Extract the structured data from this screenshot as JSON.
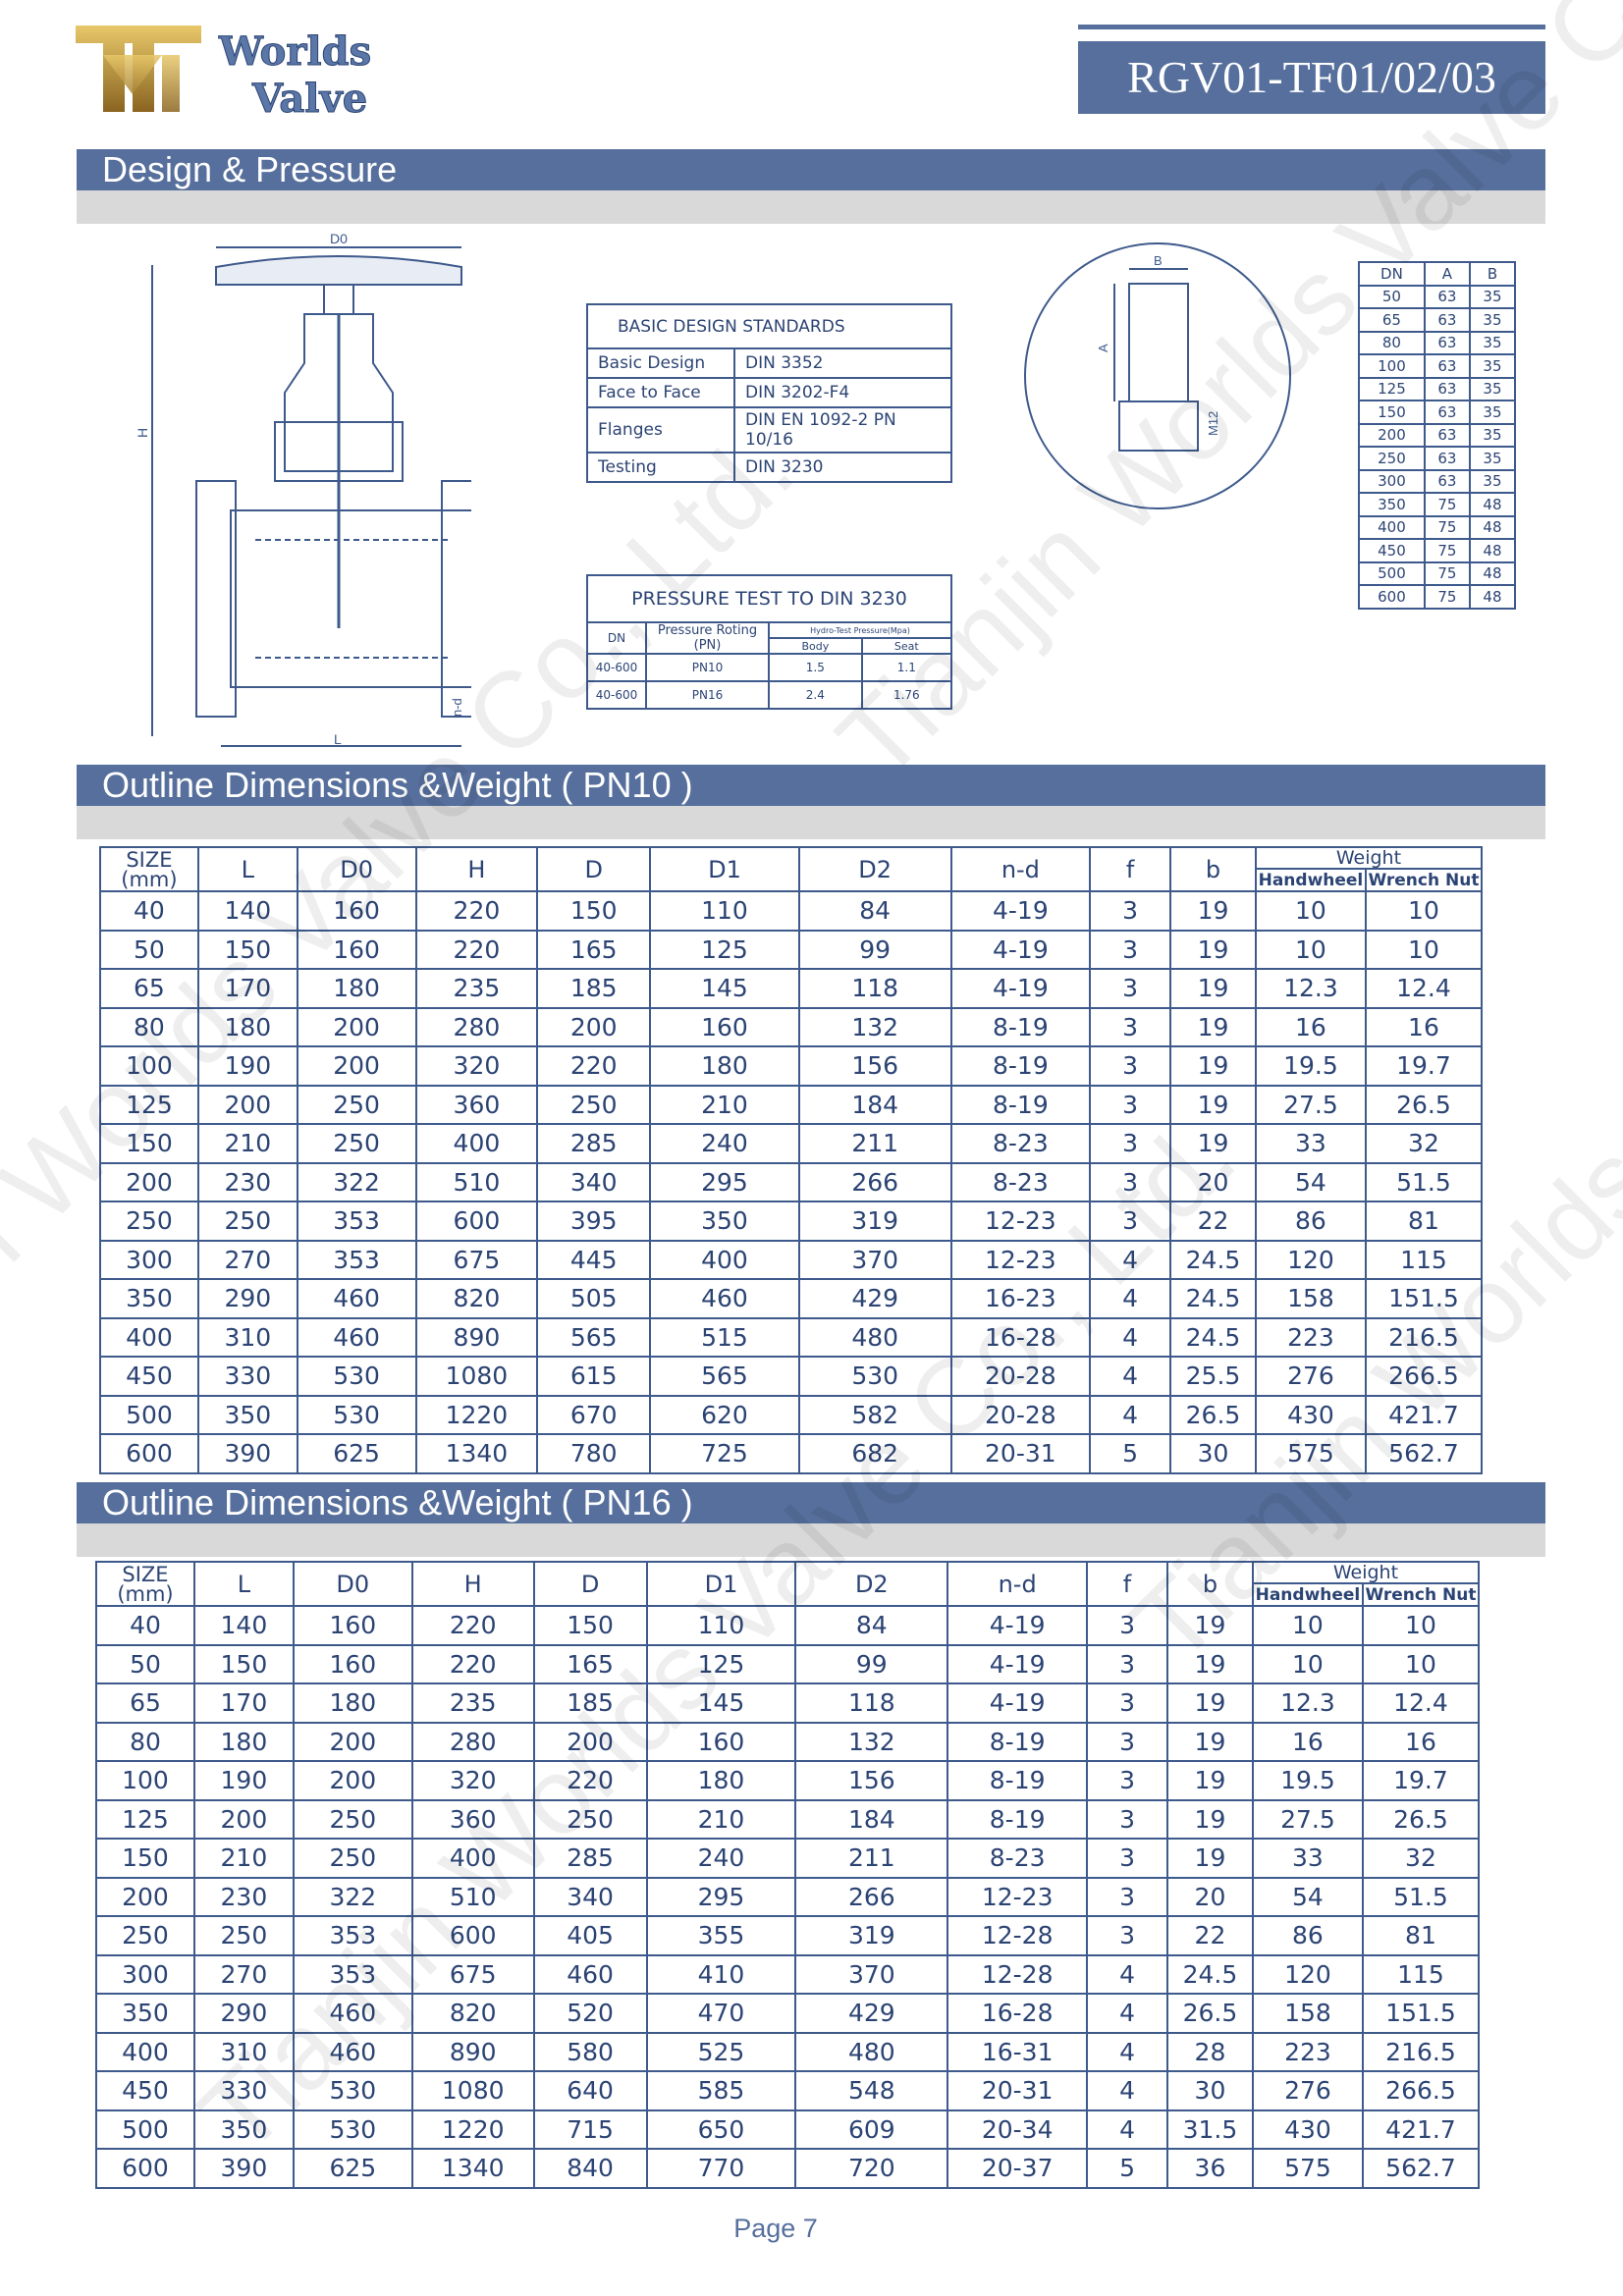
{
  "header": {
    "logo_text": [
      "Worlds",
      "Valve"
    ],
    "model": "RGV01-TF01/02/03"
  },
  "watermark": "Tianjin Worlds Valve Co., Ltd.",
  "sections": {
    "design": "Design & Pressure",
    "pn10": "Outline Dimensions &Weight   ( PN10 )",
    "pn16": "Outline Dimensions &Weight   ( PN16 )"
  },
  "drawing_labels": {
    "d0": "D0",
    "h": "H",
    "l": "L",
    "nd": "n-d",
    "b": "B",
    "a": "A",
    "m": "M12"
  },
  "design_standards": {
    "title": "BASIC DESIGN STANDARDS",
    "rows": [
      [
        "Basic Design",
        "DIN 3352"
      ],
      [
        "Face to Face",
        "DIN 3202-F4"
      ],
      [
        "Flanges",
        "DIN EN 1092-2  PN 10/16"
      ],
      [
        "Testing",
        "DIN 3230"
      ]
    ]
  },
  "pressure_test": {
    "title": "PRESSURE TEST TO DIN 3230",
    "h_dn": "DN",
    "h_rating": "Pressure Roting (PN)",
    "h_hydro": "Hydro-Test Pressure(Mpa)",
    "h_body": "Body",
    "h_seat": "Seat",
    "rows": [
      [
        "40-600",
        "PN10",
        "1.5",
        "1.1"
      ],
      [
        "40-600",
        "PN16",
        "2.4",
        "1.76"
      ]
    ]
  },
  "nut_table": {
    "headers": [
      "DN",
      "A",
      "B"
    ],
    "rows": [
      [
        "50",
        "63",
        "35"
      ],
      [
        "65",
        "63",
        "35"
      ],
      [
        "80",
        "63",
        "35"
      ],
      [
        "100",
        "63",
        "35"
      ],
      [
        "125",
        "63",
        "35"
      ],
      [
        "150",
        "63",
        "35"
      ],
      [
        "200",
        "63",
        "35"
      ],
      [
        "250",
        "63",
        "35"
      ],
      [
        "300",
        "63",
        "35"
      ],
      [
        "350",
        "75",
        "48"
      ],
      [
        "400",
        "75",
        "48"
      ],
      [
        "450",
        "75",
        "48"
      ],
      [
        "500",
        "75",
        "48"
      ],
      [
        "600",
        "75",
        "48"
      ]
    ]
  },
  "dim_headers": {
    "cols": [
      "SIZE (mm)",
      "L",
      "D0",
      "H",
      "D",
      "D1",
      "D2",
      "n-d",
      "f",
      "b"
    ],
    "weight": "Weight",
    "handwheel": "Handwheel",
    "wrench": "Wrench Nut"
  },
  "pn10_rows": [
    [
      "40",
      "140",
      "160",
      "220",
      "150",
      "110",
      "84",
      "4-19",
      "3",
      "19",
      "10",
      "10"
    ],
    [
      "50",
      "150",
      "160",
      "220",
      "165",
      "125",
      "99",
      "4-19",
      "3",
      "19",
      "10",
      "10"
    ],
    [
      "65",
      "170",
      "180",
      "235",
      "185",
      "145",
      "118",
      "4-19",
      "3",
      "19",
      "12.3",
      "12.4"
    ],
    [
      "80",
      "180",
      "200",
      "280",
      "200",
      "160",
      "132",
      "8-19",
      "3",
      "19",
      "16",
      "16"
    ],
    [
      "100",
      "190",
      "200",
      "320",
      "220",
      "180",
      "156",
      "8-19",
      "3",
      "19",
      "19.5",
      "19.7"
    ],
    [
      "125",
      "200",
      "250",
      "360",
      "250",
      "210",
      "184",
      "8-19",
      "3",
      "19",
      "27.5",
      "26.5"
    ],
    [
      "150",
      "210",
      "250",
      "400",
      "285",
      "240",
      "211",
      "8-23",
      "3",
      "19",
      "33",
      "32"
    ],
    [
      "200",
      "230",
      "322",
      "510",
      "340",
      "295",
      "266",
      "8-23",
      "3",
      "20",
      "54",
      "51.5"
    ],
    [
      "250",
      "250",
      "353",
      "600",
      "395",
      "350",
      "319",
      "12-23",
      "3",
      "22",
      "86",
      "81"
    ],
    [
      "300",
      "270",
      "353",
      "675",
      "445",
      "400",
      "370",
      "12-23",
      "4",
      "24.5",
      "120",
      "115"
    ],
    [
      "350",
      "290",
      "460",
      "820",
      "505",
      "460",
      "429",
      "16-23",
      "4",
      "24.5",
      "158",
      "151.5"
    ],
    [
      "400",
      "310",
      "460",
      "890",
      "565",
      "515",
      "480",
      "16-28",
      "4",
      "24.5",
      "223",
      "216.5"
    ],
    [
      "450",
      "330",
      "530",
      "1080",
      "615",
      "565",
      "530",
      "20-28",
      "4",
      "25.5",
      "276",
      "266.5"
    ],
    [
      "500",
      "350",
      "530",
      "1220",
      "670",
      "620",
      "582",
      "20-28",
      "4",
      "26.5",
      "430",
      "421.7"
    ],
    [
      "600",
      "390",
      "625",
      "1340",
      "780",
      "725",
      "682",
      "20-31",
      "5",
      "30",
      "575",
      "562.7"
    ]
  ],
  "pn16_rows": [
    [
      "40",
      "140",
      "160",
      "220",
      "150",
      "110",
      "84",
      "4-19",
      "3",
      "19",
      "10",
      "10"
    ],
    [
      "50",
      "150",
      "160",
      "220",
      "165",
      "125",
      "99",
      "4-19",
      "3",
      "19",
      "10",
      "10"
    ],
    [
      "65",
      "170",
      "180",
      "235",
      "185",
      "145",
      "118",
      "4-19",
      "3",
      "19",
      "12.3",
      "12.4"
    ],
    [
      "80",
      "180",
      "200",
      "280",
      "200",
      "160",
      "132",
      "8-19",
      "3",
      "19",
      "16",
      "16"
    ],
    [
      "100",
      "190",
      "200",
      "320",
      "220",
      "180",
      "156",
      "8-19",
      "3",
      "19",
      "19.5",
      "19.7"
    ],
    [
      "125",
      "200",
      "250",
      "360",
      "250",
      "210",
      "184",
      "8-19",
      "3",
      "19",
      "27.5",
      "26.5"
    ],
    [
      "150",
      "210",
      "250",
      "400",
      "285",
      "240",
      "211",
      "8-23",
      "3",
      "19",
      "33",
      "32"
    ],
    [
      "200",
      "230",
      "322",
      "510",
      "340",
      "295",
      "266",
      "12-23",
      "3",
      "20",
      "54",
      "51.5"
    ],
    [
      "250",
      "250",
      "353",
      "600",
      "405",
      "355",
      "319",
      "12-28",
      "3",
      "22",
      "86",
      "81"
    ],
    [
      "300",
      "270",
      "353",
      "675",
      "460",
      "410",
      "370",
      "12-28",
      "4",
      "24.5",
      "120",
      "115"
    ],
    [
      "350",
      "290",
      "460",
      "820",
      "520",
      "470",
      "429",
      "16-28",
      "4",
      "26.5",
      "158",
      "151.5"
    ],
    [
      "400",
      "310",
      "460",
      "890",
      "580",
      "525",
      "480",
      "16-31",
      "4",
      "28",
      "223",
      "216.5"
    ],
    [
      "450",
      "330",
      "530",
      "1080",
      "640",
      "585",
      "548",
      "20-31",
      "4",
      "30",
      "276",
      "266.5"
    ],
    [
      "500",
      "350",
      "530",
      "1220",
      "715",
      "650",
      "609",
      "20-34",
      "4",
      "31.5",
      "430",
      "421.7"
    ],
    [
      "600",
      "390",
      "625",
      "1340",
      "840",
      "770",
      "720",
      "20-37",
      "5",
      "36",
      "575",
      "562.7"
    ]
  ],
  "footer": {
    "page": "Page 7"
  },
  "colors": {
    "bar": "#566f9c",
    "band": "#d9d9d9",
    "text": "#2c4474",
    "logo_gold": "#b8902e"
  }
}
